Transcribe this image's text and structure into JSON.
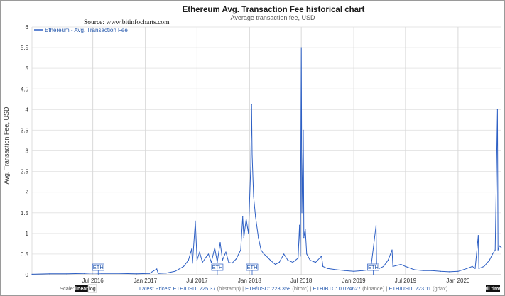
{
  "chart_data": {
    "type": "line",
    "title": "Ethereum Avg. Transaction Fee historical chart",
    "subtitle": "Average transaction fee, USD",
    "source": "Source: www.bitinfocharts.com",
    "xlabel": "",
    "ylabel": "Avg. Transaction Fee, USD",
    "ylim": [
      0,
      6
    ],
    "y_ticks": [
      "0",
      "0.5",
      "1",
      "1.5",
      "2",
      "2.5",
      "3",
      "3.5",
      "4",
      "4.5",
      "5",
      "5.5",
      "6"
    ],
    "x_ticks": [
      "Jul 2016",
      "Jan 2017",
      "Jul 2017",
      "Jan 2018",
      "Jul 2018",
      "Jan 2019",
      "Jul 2019",
      "Jan 2020"
    ],
    "x_range": [
      "2015-12-01",
      "2020-06-01"
    ],
    "grid": true,
    "legend_position": "top-left",
    "color": "#2d5fc4",
    "series": [
      {
        "name": "Ethereum - Avg. Transaction Fee",
        "points": [
          [
            "2015-12-01",
            0.01
          ],
          [
            "2016-02-01",
            0.02
          ],
          [
            "2016-04-01",
            0.02
          ],
          [
            "2016-06-01",
            0.03
          ],
          [
            "2016-07-01",
            0.04
          ],
          [
            "2016-08-01",
            0.03
          ],
          [
            "2016-10-01",
            0.03
          ],
          [
            "2016-12-01",
            0.02
          ],
          [
            "2017-01-15",
            0.03
          ],
          [
            "2017-02-10",
            0.14
          ],
          [
            "2017-02-15",
            0.03
          ],
          [
            "2017-03-15",
            0.04
          ],
          [
            "2017-04-15",
            0.08
          ],
          [
            "2017-05-15",
            0.2
          ],
          [
            "2017-06-01",
            0.35
          ],
          [
            "2017-06-12",
            0.62
          ],
          [
            "2017-06-15",
            0.28
          ],
          [
            "2017-06-25",
            1.3
          ],
          [
            "2017-07-01",
            0.35
          ],
          [
            "2017-07-10",
            0.55
          ],
          [
            "2017-07-20",
            0.3
          ],
          [
            "2017-08-01",
            0.42
          ],
          [
            "2017-08-10",
            0.5
          ],
          [
            "2017-08-20",
            0.3
          ],
          [
            "2017-09-01",
            0.65
          ],
          [
            "2017-09-10",
            0.3
          ],
          [
            "2017-09-20",
            0.78
          ],
          [
            "2017-09-28",
            0.35
          ],
          [
            "2017-10-10",
            0.55
          ],
          [
            "2017-10-20",
            0.3
          ],
          [
            "2017-11-01",
            0.28
          ],
          [
            "2017-11-15",
            0.38
          ],
          [
            "2017-12-01",
            0.6
          ],
          [
            "2017-12-08",
            1.4
          ],
          [
            "2017-12-12",
            0.9
          ],
          [
            "2017-12-20",
            1.35
          ],
          [
            "2017-12-28",
            1.0
          ],
          [
            "2018-01-05",
            2.6
          ],
          [
            "2018-01-08",
            4.12
          ],
          [
            "2018-01-10",
            2.9
          ],
          [
            "2018-01-15",
            1.9
          ],
          [
            "2018-01-22",
            1.4
          ],
          [
            "2018-02-01",
            0.9
          ],
          [
            "2018-02-10",
            0.6
          ],
          [
            "2018-02-20",
            0.5
          ],
          [
            "2018-03-01",
            0.45
          ],
          [
            "2018-03-15",
            0.35
          ],
          [
            "2018-04-01",
            0.25
          ],
          [
            "2018-04-15",
            0.3
          ],
          [
            "2018-05-01",
            0.5
          ],
          [
            "2018-05-15",
            0.35
          ],
          [
            "2018-06-01",
            0.3
          ],
          [
            "2018-06-20",
            0.4
          ],
          [
            "2018-06-25",
            1.2
          ],
          [
            "2018-06-28",
            0.45
          ],
          [
            "2018-07-01",
            5.5
          ],
          [
            "2018-07-03",
            1.5
          ],
          [
            "2018-07-08",
            3.5
          ],
          [
            "2018-07-10",
            0.9
          ],
          [
            "2018-07-15",
            1.1
          ],
          [
            "2018-07-20",
            0.5
          ],
          [
            "2018-08-01",
            0.35
          ],
          [
            "2018-08-20",
            0.3
          ],
          [
            "2018-09-10",
            0.45
          ],
          [
            "2018-09-15",
            0.2
          ],
          [
            "2018-10-01",
            0.15
          ],
          [
            "2018-11-01",
            0.12
          ],
          [
            "2018-12-01",
            0.1
          ],
          [
            "2019-01-01",
            0.08
          ],
          [
            "2019-02-01",
            0.1
          ],
          [
            "2019-03-01",
            0.12
          ],
          [
            "2019-03-20",
            1.2
          ],
          [
            "2019-03-22",
            0.12
          ],
          [
            "2019-04-15",
            0.2
          ],
          [
            "2019-05-01",
            0.35
          ],
          [
            "2019-05-15",
            0.6
          ],
          [
            "2019-05-18",
            0.2
          ],
          [
            "2019-06-15",
            0.25
          ],
          [
            "2019-07-01",
            0.2
          ],
          [
            "2019-08-01",
            0.12
          ],
          [
            "2019-09-01",
            0.1
          ],
          [
            "2019-10-01",
            0.1
          ],
          [
            "2019-11-01",
            0.08
          ],
          [
            "2019-12-01",
            0.07
          ],
          [
            "2020-01-01",
            0.08
          ],
          [
            "2020-02-01",
            0.15
          ],
          [
            "2020-02-20",
            0.2
          ],
          [
            "2020-03-01",
            0.15
          ],
          [
            "2020-03-12",
            0.95
          ],
          [
            "2020-03-14",
            0.15
          ],
          [
            "2020-04-01",
            0.2
          ],
          [
            "2020-04-20",
            0.35
          ],
          [
            "2020-05-01",
            0.5
          ],
          [
            "2020-05-10",
            0.6
          ],
          [
            "2020-05-18",
            4.0
          ],
          [
            "2020-05-20",
            0.6
          ],
          [
            "2020-05-25",
            0.7
          ],
          [
            "2020-06-01",
            0.65
          ]
        ]
      }
    ],
    "annotations": [
      {
        "date": "2016-07-20",
        "label": "ETH"
      },
      {
        "date": "2017-09-10",
        "label": "ETH"
      },
      {
        "date": "2018-01-10",
        "label": "ETH"
      },
      {
        "date": "2019-03-10",
        "label": "ETH"
      }
    ]
  },
  "controls": {
    "scale_label": "Scale:",
    "linear_label": "linear",
    "log_label": "log",
    "all_time_label": "all time",
    "scale_selected": "linear"
  },
  "footer": {
    "prefix": "Latest Prices:",
    "prices": [
      {
        "pair": "ETH/USD:",
        "value": "225.37",
        "source": "(bitstamp)"
      },
      {
        "pair": "ETH/USD:",
        "value": "223.358",
        "source": "(hitbtc)"
      },
      {
        "pair": "ETH/BTC:",
        "value": "0.024627",
        "source": "(binance)"
      },
      {
        "pair": "ETH/USD:",
        "value": "223.11",
        "source": "(gdax)"
      }
    ]
  }
}
